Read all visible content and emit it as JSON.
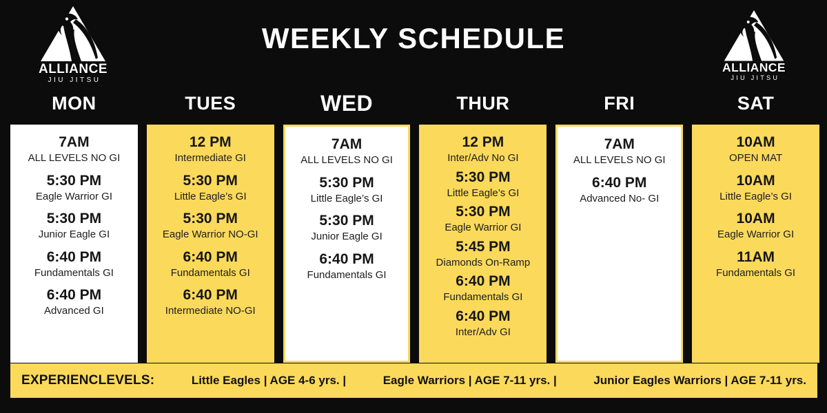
{
  "brand": {
    "name": "ALLIANCE",
    "subname": "JIU JITSU"
  },
  "title": "WEEKLY SCHEDULE",
  "days": [
    {
      "label": "MON",
      "style": "white",
      "entries": [
        {
          "time": "7AM",
          "name": "ALL LEVELS NO GI"
        },
        {
          "time": "5:30 PM",
          "name": "Eagle Warrior GI"
        },
        {
          "time": "5:30 PM",
          "name": "Junior Eagle GI"
        },
        {
          "time": "6:40 PM",
          "name": "Fundamentals GI"
        },
        {
          "time": "6:40 PM",
          "name": "Advanced GI"
        }
      ]
    },
    {
      "label": "TUES",
      "style": "yellow",
      "entries": [
        {
          "time": "12 PM",
          "name": "Intermediate GI"
        },
        {
          "time": "5:30 PM",
          "name": "Little Eagle’s GI"
        },
        {
          "time": "5:30 PM",
          "name": "Eagle Warrior NO-GI"
        },
        {
          "time": "6:40 PM",
          "name": "Fundamentals GI"
        },
        {
          "time": "6:40 PM",
          "name": "Intermediate NO-GI"
        }
      ]
    },
    {
      "label": "WED",
      "style": "white-bordered",
      "entries": [
        {
          "time": "7AM",
          "name": "ALL LEVELS NO GI"
        },
        {
          "time": "5:30 PM",
          "name": "Little Eagle’s GI"
        },
        {
          "time": "5:30 PM",
          "name": "Junior Eagle GI"
        },
        {
          "time": "6:40 PM",
          "name": "Fundamentals GI"
        }
      ]
    },
    {
      "label": "THUR",
      "style": "yellow",
      "compact": true,
      "entries": [
        {
          "time": "12 PM",
          "name": "Inter/Adv No GI"
        },
        {
          "time": "5:30 PM",
          "name": "Little Eagle’s GI"
        },
        {
          "time": "5:30 PM",
          "name": "Eagle Warrior GI"
        },
        {
          "time": "5:45 PM",
          "name": "Diamonds On-Ramp"
        },
        {
          "time": "6:40 PM",
          "name": "Fundamentals GI"
        },
        {
          "time": "6:40 PM",
          "name": "Inter/Adv GI"
        }
      ]
    },
    {
      "label": "FRI",
      "style": "white-bordered",
      "entries": [
        {
          "time": "7AM",
          "name": "ALL LEVELS NO GI"
        },
        {
          "time": "6:40 PM",
          "name": "Advanced No- GI"
        }
      ]
    },
    {
      "label": "SAT",
      "style": "yellow",
      "entries": [
        {
          "time": "10AM",
          "name": "OPEN MAT"
        },
        {
          "time": "10AM",
          "name": "Little Eagle’s GI"
        },
        {
          "time": "10AM",
          "name": "Eagle Warrior GI"
        },
        {
          "time": "11AM",
          "name": "Fundamentals GI"
        }
      ]
    }
  ],
  "footer": {
    "label": "EXPERIENCLEVELS:",
    "segments": [
      "Little Eagles | AGE 4-6 yrs. |",
      "Eagle Warriors | AGE 7-11 yrs. |",
      "Junior Eagles Warriors | AGE 7-11 yrs."
    ]
  },
  "colors": {
    "background": "#0c0c0c",
    "yellow": "#FBD95B",
    "card_white": "#ffffff",
    "text_dark": "#161616",
    "text_light": "#ffffff"
  }
}
